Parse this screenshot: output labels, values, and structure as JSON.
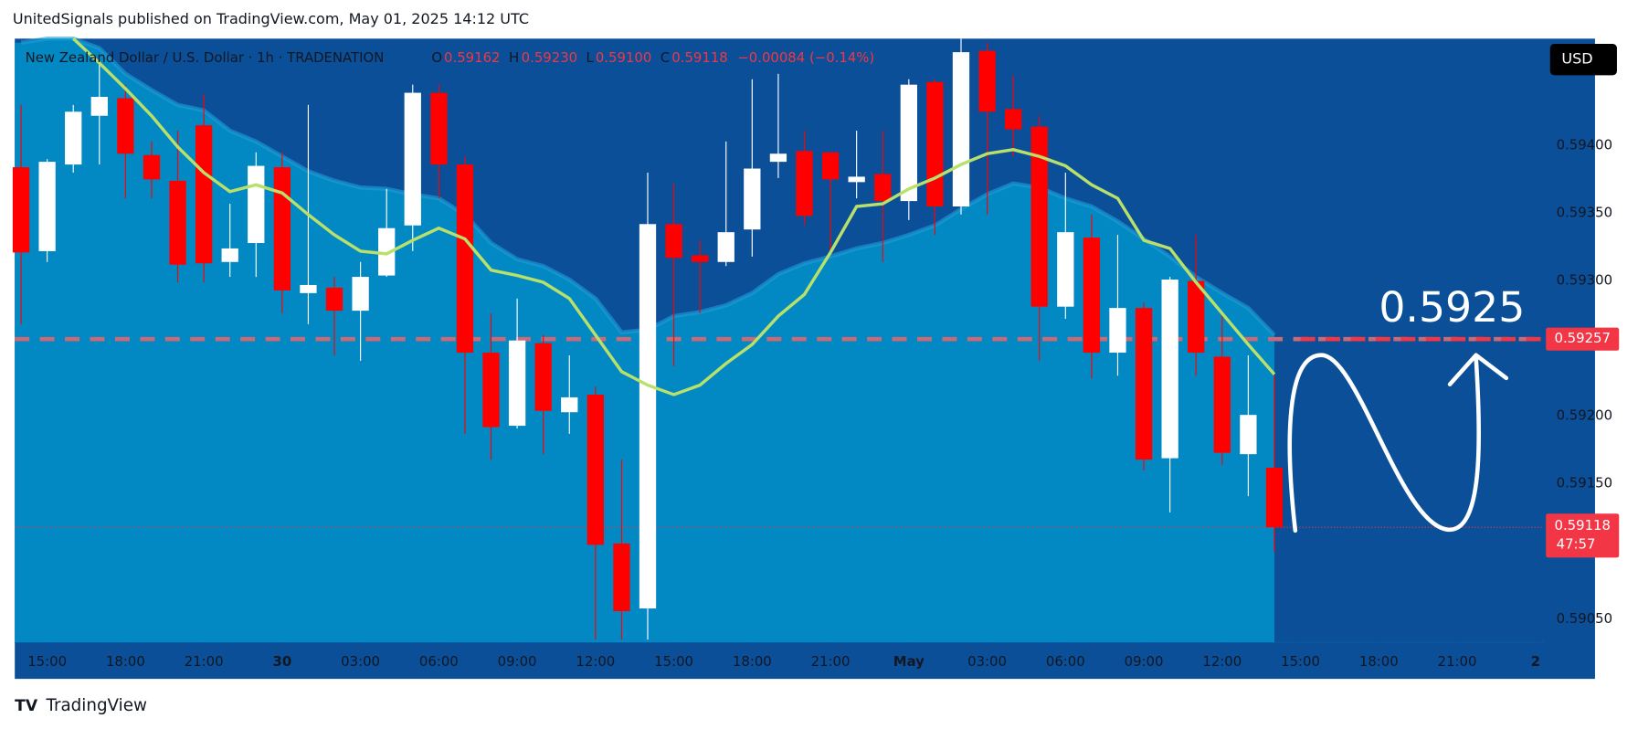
{
  "chart_data": {
    "type": "candlestick",
    "title": "UnitedSignals published on TradingView.com, May 01, 2025 14:12 UTC",
    "legend": {
      "name": "New Zealand Dollar / U.S. Dollar · 1h · TRADENATION",
      "o": "O",
      "o_value": "0.59162",
      "h": "H",
      "h_value": "0.59230",
      "l": "L",
      "l_value": "0.59100",
      "c": "C",
      "c_value": "0.59118",
      "change": "−0.00084 (−0.14%)"
    },
    "currency": "USD",
    "brand": "TradingView",
    "annotation": "0.5925",
    "up_color": "#ffffff",
    "down_color": "#ff0000",
    "open": [
      0.59384,
      0.59322,
      0.59386,
      0.59422,
      0.59435,
      0.59393,
      0.59374,
      0.59415,
      0.59314,
      0.59328,
      0.59384,
      0.59291,
      0.59295,
      0.59278,
      0.59304,
      0.59341,
      0.59439,
      0.59386,
      0.59247,
      0.59193,
      0.59254,
      0.59203,
      0.59216,
      0.59106,
      0.59058,
      0.59342,
      0.59319,
      0.59314,
      0.59338,
      0.59388,
      0.59396,
      0.59395,
      0.59373,
      0.59379,
      0.59359,
      0.59447,
      0.59355,
      0.5947,
      0.59427,
      0.59414,
      0.59281,
      0.59332,
      0.59247,
      0.5928,
      0.59169,
      0.593,
      0.59244,
      0.59172,
      0.59162
    ],
    "high": [
      0.5943,
      0.5939,
      0.5943,
      0.59461,
      0.59445,
      0.59403,
      0.59411,
      0.59438,
      0.59357,
      0.59395,
      0.59395,
      0.5943,
      0.59303,
      0.59314,
      0.59368,
      0.59445,
      0.59445,
      0.59392,
      0.59276,
      0.59287,
      0.5926,
      0.59245,
      0.59222,
      0.59168,
      0.5938,
      0.59372,
      0.5933,
      0.59403,
      0.59449,
      0.59453,
      0.59411,
      0.59395,
      0.59411,
      0.59411,
      0.59449,
      0.59449,
      0.59479,
      0.59476,
      0.59452,
      0.59422,
      0.5938,
      0.59349,
      0.59334,
      0.59284,
      0.59303,
      0.59334,
      0.59276,
      0.59245,
      0.5923
    ],
    "low": [
      0.59268,
      0.59314,
      0.5938,
      0.59386,
      0.59361,
      0.59361,
      0.59299,
      0.59299,
      0.59303,
      0.59303,
      0.59276,
      0.59268,
      0.59245,
      0.59241,
      0.59303,
      0.59322,
      0.59361,
      0.59187,
      0.59168,
      0.59191,
      0.59172,
      0.59187,
      0.59035,
      0.59035,
      0.59035,
      0.59237,
      0.59276,
      0.59311,
      0.59318,
      0.59376,
      0.59341,
      0.59322,
      0.59361,
      0.59314,
      0.59345,
      0.59334,
      0.59349,
      0.59349,
      0.59392,
      0.59241,
      0.59272,
      0.59228,
      0.5923,
      0.5916,
      0.59129,
      0.5923,
      0.59164,
      0.59141,
      0.591
    ],
    "close": [
      0.59321,
      0.59388,
      0.59425,
      0.59436,
      0.59394,
      0.59375,
      0.59312,
      0.59313,
      0.59324,
      0.59385,
      0.59293,
      0.59297,
      0.59278,
      0.59303,
      0.59339,
      0.59439,
      0.59386,
      0.59247,
      0.59192,
      0.59256,
      0.59204,
      0.59214,
      0.59105,
      0.59056,
      0.59342,
      0.59317,
      0.59314,
      0.59336,
      0.59383,
      0.59394,
      0.59348,
      0.59375,
      0.59377,
      0.59359,
      0.59445,
      0.59355,
      0.59469,
      0.59425,
      0.59412,
      0.59281,
      0.59336,
      0.59247,
      0.5928,
      0.59168,
      0.59301,
      0.59247,
      0.59173,
      0.59201,
      0.59118
    ],
    "ema": {
      "color": "#b8e06a",
      "values": [
        null,
        null,
        0.59479,
        0.59461,
        0.59442,
        0.59422,
        0.59399,
        0.5938,
        0.59366,
        0.59371,
        0.59365,
        0.59349,
        0.59334,
        0.59322,
        0.5932,
        0.5933,
        0.59339,
        0.59331,
        0.59308,
        0.59304,
        0.59299,
        0.59287,
        0.5926,
        0.59233,
        0.59223,
        0.59216,
        0.59223,
        0.59239,
        0.59253,
        0.59274,
        0.5929,
        0.59321,
        0.59355,
        0.59357,
        0.59368,
        0.59376,
        0.59386,
        0.59394,
        0.59397,
        0.59392,
        0.59385,
        0.59371,
        0.59361,
        0.5933,
        0.59324,
        0.59299,
        0.59276,
        0.59253,
        0.59231
      ]
    },
    "cloud": {
      "color": "#0288c2",
      "values": [
        0.59476,
        0.59479,
        0.59479,
        0.59472,
        0.59453,
        0.59441,
        0.5943,
        0.59426,
        0.59411,
        0.59403,
        0.59392,
        0.59381,
        0.59374,
        0.59369,
        0.59368,
        0.59364,
        0.59361,
        0.59349,
        0.59328,
        0.59316,
        0.59311,
        0.59301,
        0.59287,
        0.59262,
        0.59264,
        0.59274,
        0.59277,
        0.59282,
        0.59291,
        0.59305,
        0.59313,
        0.59318,
        0.59324,
        0.59328,
        0.59334,
        0.59341,
        0.59353,
        0.59364,
        0.59372,
        0.59369,
        0.59361,
        0.59355,
        0.59344,
        0.59331,
        0.59318,
        0.59303,
        0.59291,
        0.5928,
        0.5926
      ]
    },
    "level": {
      "value": 0.59257,
      "color": "#f23645"
    },
    "last": {
      "value": 0.59118,
      "countdown": "47:57",
      "color": "#f23645"
    },
    "ylim": [
      0.59033,
      0.59479
    ],
    "yticks": [
      {
        "value": 0.5905,
        "label": "0.59050"
      },
      {
        "value": 0.5915,
        "label": "0.59150"
      },
      {
        "value": 0.592,
        "label": "0.59200"
      },
      {
        "value": 0.593,
        "label": "0.59300"
      },
      {
        "value": 0.5935,
        "label": "0.59350"
      },
      {
        "value": 0.594,
        "label": "0.59400"
      }
    ],
    "xticks": [
      "15:00",
      "18:00",
      "21:00",
      "30",
      "03:00",
      "06:00",
      "09:00",
      "12:00",
      "15:00",
      "18:00",
      "21:00",
      "May",
      "03:00",
      "06:00",
      "09:00",
      "12:00",
      "15:00",
      "18:00",
      "21:00",
      "2"
    ]
  }
}
